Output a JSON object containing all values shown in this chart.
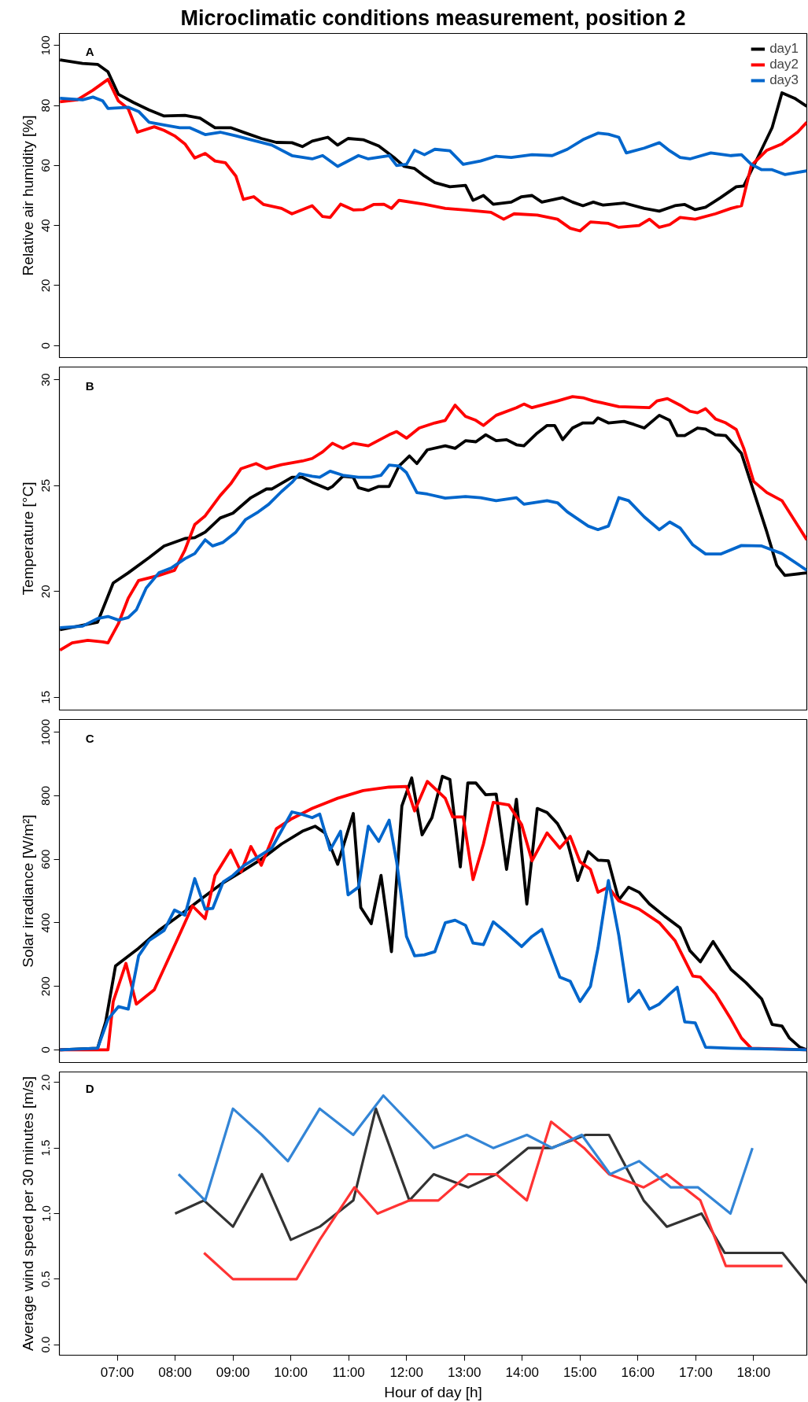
{
  "chart_data": [
    {
      "type": "line",
      "title": "Microclimatic conditions measurement, position 2",
      "ylabel": "Relative air humidity [%]",
      "annotations": [
        "A"
      ],
      "xlim": [
        6.0,
        18.92
      ],
      "ylim": [
        -4,
        104
      ],
      "yticks": [
        0,
        20,
        40,
        60,
        80,
        100
      ],
      "tick_labels": "y",
      "legend": "top right",
      "grid": false,
      "series": [
        {
          "name": "day1",
          "color": "#000000",
          "x": [
            6.01,
            6.4,
            6.66,
            6.84,
            7.02,
            7.28,
            7.55,
            7.81,
            8.17,
            8.43,
            8.69,
            8.96,
            9.22,
            9.49,
            9.75,
            10.02,
            10.2,
            10.37,
            10.64,
            10.81,
            10.99,
            11.25,
            11.52,
            11.78,
            11.96,
            12.14,
            12.31,
            12.49,
            12.75,
            13.02,
            13.15,
            13.33,
            13.5,
            13.81,
            13.99,
            14.17,
            14.34,
            14.7,
            14.87,
            15.05,
            15.23,
            15.4,
            15.76,
            16.11,
            16.37,
            16.64,
            16.81,
            16.99,
            17.17,
            17.43,
            17.7,
            17.83,
            18.05,
            18.32,
            18.49,
            18.71,
            18.92
          ],
          "values": [
            95.2,
            94,
            93.7,
            91.2,
            83.7,
            81,
            78.5,
            76.5,
            76.7,
            75.8,
            72.6,
            72.6,
            70.8,
            69,
            67.7,
            67.6,
            66.3,
            68.1,
            69.4,
            66.8,
            69,
            68.6,
            66.5,
            62.7,
            59.7,
            59,
            56.5,
            54.3,
            52.9,
            53.4,
            48.4,
            50,
            47.1,
            47.8,
            49.6,
            50,
            47.8,
            49.3,
            47.8,
            46.6,
            47.8,
            46.8,
            47.5,
            45.7,
            44.8,
            46.6,
            47,
            45.3,
            46.1,
            49.3,
            52.9,
            53.2,
            61.8,
            72.6,
            84.2,
            82.4,
            79.7
          ]
        },
        {
          "name": "day2",
          "color": "#ff0000",
          "x": [
            6.01,
            6.31,
            6.58,
            6.84,
            7.02,
            7.19,
            7.35,
            7.64,
            7.81,
            7.99,
            8.17,
            8.34,
            8.52,
            8.69,
            8.87,
            9.05,
            9.18,
            9.36,
            9.53,
            9.84,
            10.02,
            10.2,
            10.37,
            10.55,
            10.68,
            10.86,
            11.08,
            11.25,
            11.43,
            11.61,
            11.74,
            11.87,
            12.31,
            12.67,
            13.02,
            13.46,
            13.68,
            13.86,
            14.26,
            14.61,
            14.83,
            15.0,
            15.18,
            15.49,
            15.67,
            16.02,
            16.2,
            16.37,
            16.55,
            16.73,
            16.99,
            17.34,
            17.61,
            17.79,
            17.96,
            18.23,
            18.49,
            18.76,
            18.92
          ],
          "values": [
            81.2,
            81.9,
            85.1,
            88.7,
            81.5,
            78.9,
            71.1,
            72.9,
            71.7,
            69.9,
            67.2,
            62.5,
            64,
            61.5,
            60.9,
            56.5,
            48.7,
            49.6,
            47,
            45.7,
            43.9,
            45.3,
            46.6,
            43,
            42.7,
            47.1,
            45.2,
            45.3,
            47,
            47.1,
            45.7,
            48.4,
            47.1,
            45.7,
            45.2,
            44.4,
            42.1,
            43.9,
            43.5,
            42.1,
            39.1,
            38.2,
            41.2,
            40.7,
            39.4,
            40,
            42.1,
            39.4,
            40.3,
            42.7,
            42.1,
            43.9,
            45.7,
            46.6,
            60,
            65.1,
            67.2,
            71.1,
            74.4
          ]
        },
        {
          "name": "day3",
          "color": "#0066cc",
          "x": [
            6.01,
            6.4,
            6.58,
            6.75,
            6.84,
            7.19,
            7.37,
            7.55,
            7.81,
            8.08,
            8.25,
            8.52,
            8.78,
            9.05,
            9.31,
            9.67,
            10.02,
            10.37,
            10.55,
            10.81,
            11.17,
            11.34,
            11.7,
            11.83,
            12.0,
            12.14,
            12.31,
            12.49,
            12.75,
            12.98,
            13.28,
            13.55,
            13.81,
            14.17,
            14.52,
            14.78,
            15.05,
            15.31,
            15.49,
            15.67,
            15.8,
            16.11,
            16.37,
            16.55,
            16.73,
            16.9,
            17.26,
            17.61,
            17.79,
            17.96,
            18.14,
            18.32,
            18.54,
            18.92
          ],
          "values": [
            82.4,
            81.9,
            82.8,
            81.5,
            79,
            79.4,
            78,
            74.4,
            73.5,
            72.6,
            72.6,
            70.3,
            71.1,
            69.9,
            68.6,
            66.8,
            63.3,
            62.2,
            63.3,
            59.7,
            63.3,
            62.2,
            63.3,
            60,
            60.4,
            65.1,
            63.6,
            65.4,
            64.9,
            60.4,
            61.5,
            63.1,
            62.7,
            63.6,
            63.3,
            65.4,
            68.6,
            70.8,
            70.4,
            69.4,
            64.2,
            65.8,
            67.6,
            64.9,
            62.7,
            62.2,
            64.2,
            63.3,
            63.6,
            60.4,
            58.6,
            58.6,
            57,
            58.2
          ]
        }
      ]
    },
    {
      "type": "line",
      "ylabel": "Temperature [°C]",
      "annotations": [
        "B"
      ],
      "xlim": [
        6.0,
        18.92
      ],
      "ylim": [
        14.4,
        30.6
      ],
      "yticks": [
        15,
        20,
        25,
        30
      ],
      "tick_labels": "y",
      "grid": false,
      "series": [
        {
          "color": "#000000",
          "x": [
            6.01,
            6.66,
            6.93,
            7.19,
            7.55,
            7.81,
            8.17,
            8.34,
            8.52,
            8.78,
            9.0,
            9.31,
            9.58,
            9.67,
            10.02,
            10.2,
            10.37,
            10.64,
            10.72,
            10.9,
            11.08,
            11.17,
            11.34,
            11.52,
            11.7,
            11.87,
            12.05,
            12.18,
            12.36,
            12.67,
            12.84,
            13.02,
            13.2,
            13.37,
            13.55,
            13.73,
            13.9,
            14.03,
            14.26,
            14.43,
            14.56,
            14.7,
            14.87,
            15.05,
            15.23,
            15.31,
            15.49,
            15.76,
            15.93,
            16.11,
            16.37,
            16.55,
            16.68,
            16.81,
            17.03,
            17.17,
            17.34,
            17.52,
            17.79,
            17.96,
            18.23,
            18.4,
            18.54,
            18.92
          ],
          "values": [
            18.19,
            18.55,
            20.4,
            20.88,
            21.6,
            22.15,
            22.5,
            22.54,
            22.8,
            23.47,
            23.7,
            24.43,
            24.84,
            24.84,
            25.39,
            25.39,
            25.15,
            24.84,
            24.96,
            25.44,
            25.39,
            24.9,
            24.77,
            24.96,
            24.96,
            25.92,
            26.4,
            26.04,
            26.69,
            26.88,
            26.76,
            27.12,
            27.07,
            27.4,
            27.12,
            27.17,
            26.93,
            26.88,
            27.48,
            27.84,
            27.84,
            27.17,
            27.72,
            27.96,
            27.96,
            28.2,
            27.96,
            28.03,
            27.89,
            27.72,
            28.32,
            28.08,
            27.36,
            27.36,
            27.72,
            27.67,
            27.4,
            27.36,
            26.52,
            25.08,
            22.8,
            21.24,
            20.76,
            20.88
          ]
        },
        {
          "color": "#ff0000",
          "x": [
            6.01,
            6.22,
            6.49,
            6.75,
            6.84,
            7.02,
            7.19,
            7.37,
            7.72,
            7.99,
            8.17,
            8.34,
            8.52,
            8.78,
            8.96,
            9.14,
            9.4,
            9.58,
            9.84,
            10.2,
            10.37,
            10.55,
            10.72,
            10.9,
            11.08,
            11.34,
            11.7,
            11.83,
            12.0,
            12.22,
            12.49,
            12.67,
            12.84,
            13.02,
            13.2,
            13.33,
            13.55,
            13.9,
            14.03,
            14.17,
            14.61,
            14.87,
            15.05,
            15.23,
            15.67,
            16.2,
            16.33,
            16.51,
            16.73,
            16.9,
            17.03,
            17.17,
            17.34,
            17.52,
            17.7,
            17.83,
            18.0,
            18.23,
            18.49,
            18.92
          ],
          "values": [
            17.23,
            17.57,
            17.69,
            17.62,
            17.57,
            18.48,
            19.68,
            20.52,
            20.76,
            21.0,
            21.96,
            23.16,
            23.57,
            24.53,
            25.08,
            25.8,
            26.04,
            25.8,
            25.99,
            26.16,
            26.28,
            26.59,
            27,
            26.76,
            27,
            26.88,
            27.4,
            27.55,
            27.24,
            27.72,
            27.96,
            28.08,
            28.8,
            28.27,
            28.08,
            27.84,
            28.32,
            28.68,
            28.85,
            28.68,
            29,
            29.2,
            29.15,
            29,
            28.73,
            28.68,
            29,
            29.11,
            28.8,
            28.51,
            28.44,
            28.63,
            28.15,
            27.96,
            27.65,
            26.76,
            25.2,
            24.67,
            24.29,
            22.44
          ]
        },
        {
          "color": "#0066cc",
          "x": [
            6.01,
            6.4,
            6.66,
            6.84,
            7.02,
            7.19,
            7.33,
            7.5,
            7.72,
            7.94,
            8.17,
            8.34,
            8.52,
            8.65,
            8.83,
            9.05,
            9.22,
            9.44,
            9.62,
            9.84,
            10.02,
            10.15,
            10.37,
            10.5,
            10.68,
            10.9,
            11.17,
            11.39,
            11.56,
            11.7,
            11.87,
            12.0,
            12.18,
            12.36,
            12.67,
            13.02,
            13.28,
            13.55,
            13.9,
            14.03,
            14.43,
            14.61,
            14.78,
            15.14,
            15.31,
            15.49,
            15.67,
            15.84,
            16.11,
            16.37,
            16.55,
            16.73,
            16.95,
            17.17,
            17.43,
            17.79,
            18.14,
            18.49,
            18.92
          ],
          "values": [
            18.29,
            18.36,
            18.72,
            18.82,
            18.65,
            18.77,
            19.13,
            20.16,
            20.88,
            21.12,
            21.55,
            21.79,
            22.44,
            22.15,
            22.32,
            22.8,
            23.4,
            23.76,
            24.12,
            24.72,
            25.15,
            25.56,
            25.44,
            25.39,
            25.68,
            25.49,
            25.39,
            25.39,
            25.49,
            25.97,
            25.92,
            25.61,
            24.67,
            24.6,
            24.41,
            24.48,
            24.43,
            24.29,
            24.43,
            24.12,
            24.29,
            24.19,
            23.76,
            23.09,
            22.92,
            23.09,
            24.43,
            24.29,
            23.52,
            22.92,
            23.28,
            23.0,
            22.2,
            21.77,
            21.77,
            22.17,
            22.15,
            21.79,
            21.0
          ]
        }
      ]
    },
    {
      "type": "line",
      "ylabel": "Solar irradiance [W/m²]",
      "annotations": [
        "C"
      ],
      "xlim": [
        6.0,
        18.92
      ],
      "ylim": [
        -40,
        1040
      ],
      "yticks": [
        0,
        200,
        400,
        600,
        800,
        1000
      ],
      "tick_labels": "y",
      "grid": false,
      "series": [
        {
          "color": "#000000",
          "x": [
            6.01,
            6.66,
            6.8,
            6.97,
            7.37,
            7.72,
            8.08,
            8.43,
            8.78,
            9.14,
            9.49,
            9.84,
            10.2,
            10.42,
            10.59,
            10.81,
            11.08,
            11.21,
            11.39,
            11.56,
            11.74,
            11.92,
            12.09,
            12.27,
            12.44,
            12.62,
            12.75,
            12.93,
            13.06,
            13.2,
            13.37,
            13.55,
            13.73,
            13.9,
            14.08,
            14.26,
            14.43,
            14.61,
            14.78,
            14.96,
            15.14,
            15.31,
            15.49,
            15.67,
            15.84,
            16.02,
            16.2,
            16.46,
            16.73,
            16.9,
            17.08,
            17.3,
            17.43,
            17.61,
            17.87,
            18.14,
            18.32,
            18.49,
            18.62,
            18.8,
            18.92
          ],
          "values": [
            0,
            5,
            88,
            264,
            320,
            376,
            424,
            472,
            520,
            560,
            600,
            648,
            688,
            704,
            683,
            584,
            744,
            448,
            397,
            549,
            309,
            768,
            856,
            677,
            731,
            861,
            851,
            576,
            840,
            840,
            803,
            805,
            568,
            789,
            459,
            760,
            747,
            712,
            656,
            533,
            624,
            597,
            595,
            472,
            512,
            496,
            459,
            421,
            384,
            312,
            277,
            341,
            304,
            253,
            211,
            160,
            80,
            75,
            37,
            8,
            0
          ]
        },
        {
          "color": "#ff0000",
          "x": [
            6.01,
            6.84,
            6.93,
            7.15,
            7.33,
            7.64,
            8.03,
            8.3,
            8.52,
            8.69,
            8.96,
            9.14,
            9.31,
            9.49,
            9.75,
            10.02,
            10.37,
            10.81,
            11.25,
            11.7,
            12.0,
            12.14,
            12.36,
            12.67,
            12.8,
            12.98,
            13.15,
            13.33,
            13.5,
            13.77,
            13.99,
            14.17,
            14.43,
            14.65,
            14.83,
            15.0,
            15.18,
            15.31,
            15.49,
            15.67,
            16.02,
            16.37,
            16.64,
            16.95,
            17.08,
            17.34,
            17.61,
            17.79,
            17.96,
            18.92
          ],
          "values": [
            0,
            0,
            152,
            272,
            144,
            189,
            344,
            453,
            413,
            549,
            629,
            560,
            640,
            581,
            696,
            728,
            760,
            792,
            816,
            827,
            829,
            752,
            845,
            792,
            733,
            733,
            536,
            648,
            779,
            771,
            709,
            595,
            683,
            635,
            672,
            592,
            568,
            496,
            512,
            469,
            443,
            400,
            344,
            232,
            229,
            176,
            96,
            37,
            5,
            0
          ]
        },
        {
          "color": "#0066cc",
          "x": [
            6.01,
            6.66,
            6.84,
            7.02,
            7.19,
            7.37,
            7.55,
            7.81,
            7.99,
            8.17,
            8.34,
            8.52,
            8.65,
            8.83,
            9.0,
            9.18,
            9.44,
            9.67,
            9.8,
            10.02,
            10.2,
            10.37,
            10.5,
            10.68,
            10.86,
            10.99,
            11.17,
            11.34,
            11.52,
            11.7,
            11.83,
            12.0,
            12.14,
            12.31,
            12.49,
            12.67,
            12.84,
            13.02,
            13.15,
            13.33,
            13.5,
            13.73,
            13.99,
            14.17,
            14.34,
            14.65,
            14.83,
            15.0,
            15.18,
            15.31,
            15.49,
            15.67,
            15.84,
            16.02,
            16.2,
            16.37,
            16.55,
            16.68,
            16.81,
            16.99,
            17.17,
            17.61,
            18.92
          ],
          "values": [
            0,
            5,
            96,
            136,
            128,
            296,
            344,
            376,
            440,
            424,
            539,
            443,
            445,
            528,
            549,
            579,
            608,
            635,
            677,
            749,
            741,
            731,
            742,
            629,
            688,
            488,
            512,
            704,
            656,
            723,
            592,
            357,
            296,
            299,
            309,
            400,
            408,
            392,
            336,
            331,
            403,
            368,
            325,
            357,
            379,
            229,
            216,
            152,
            200,
            320,
            533,
            360,
            152,
            187,
            128,
            144,
            176,
            197,
            88,
            85,
            8,
            5,
            0
          ]
        }
      ]
    },
    {
      "type": "line",
      "ylabel": "Average wind speed per 30 minutes [m/s]",
      "xlabel": "Hour of day [h]",
      "annotations": [
        "D"
      ],
      "xlim": [
        6.0,
        18.92
      ],
      "ylim": [
        -0.08,
        2.08
      ],
      "yticks": [
        {
          "value": 0,
          "label": "0.0"
        },
        0.5,
        {
          "value": 1,
          "label": "1.0"
        },
        1.5,
        {
          "value": 2,
          "label": "2.0"
        }
      ],
      "xticks": [
        {
          "value": 7,
          "label": "07:00"
        },
        {
          "value": 8,
          "label": "08:00"
        },
        {
          "value": 9,
          "label": "09:00"
        },
        {
          "value": 10,
          "label": "10:00"
        },
        {
          "value": 11,
          "label": "11:00"
        },
        {
          "value": 12,
          "label": "12:00"
        },
        {
          "value": 13,
          "label": "13:00"
        },
        {
          "value": 14,
          "label": "14:00"
        },
        {
          "value": 15,
          "label": "15:00"
        },
        {
          "value": 16,
          "label": "16:00"
        },
        {
          "value": 17,
          "label": "17:00"
        },
        {
          "value": 18,
          "label": "18:00"
        }
      ],
      "grid": false,
      "series": [
        {
          "color": "#333333",
          "x": [
            8.0,
            8.5,
            9.0,
            9.5,
            10.0,
            10.5,
            11.08,
            11.47,
            12.05,
            12.47,
            13.07,
            13.55,
            14.1,
            14.5,
            15.1,
            15.5,
            16.1,
            16.5,
            17.1,
            17.5,
            18.5,
            18.92
          ],
          "values": [
            1.0,
            1.1,
            0.9,
            1.3,
            0.8,
            0.9,
            1.1,
            1.8,
            1.1,
            1.3,
            1.2,
            1.3,
            1.5,
            1.5,
            1.6,
            1.6,
            1.1,
            0.9,
            1.0,
            0.7,
            0.7,
            0.47
          ]
        },
        {
          "color": "#ff3333",
          "x": [
            8.5,
            9.0,
            10.1,
            10.5,
            11.1,
            11.5,
            12.05,
            12.55,
            13.07,
            13.55,
            14.08,
            14.5,
            15.07,
            15.5,
            16.1,
            16.5,
            17.08,
            17.52,
            18.5
          ],
          "values": [
            0.7,
            0.5,
            0.5,
            0.8,
            1.2,
            1.0,
            1.1,
            1.1,
            1.3,
            1.3,
            1.1,
            1.7,
            1.5,
            1.3,
            1.2,
            1.3,
            1.1,
            0.6,
            0.6
          ]
        },
        {
          "color": "#3385d6",
          "x": [
            8.06,
            8.52,
            9.0,
            9.5,
            9.95,
            10.5,
            11.08,
            11.6,
            12.47,
            13.04,
            13.5,
            14.08,
            14.52,
            15.03,
            15.52,
            16.02,
            16.57,
            17.04,
            17.6,
            17.98
          ],
          "values": [
            1.3,
            1.1,
            1.8,
            1.6,
            1.4,
            1.8,
            1.6,
            1.9,
            1.5,
            1.6,
            1.5,
            1.6,
            1.5,
            1.6,
            1.3,
            1.4,
            1.2,
            1.2,
            1.0,
            1.5
          ]
        }
      ]
    }
  ]
}
